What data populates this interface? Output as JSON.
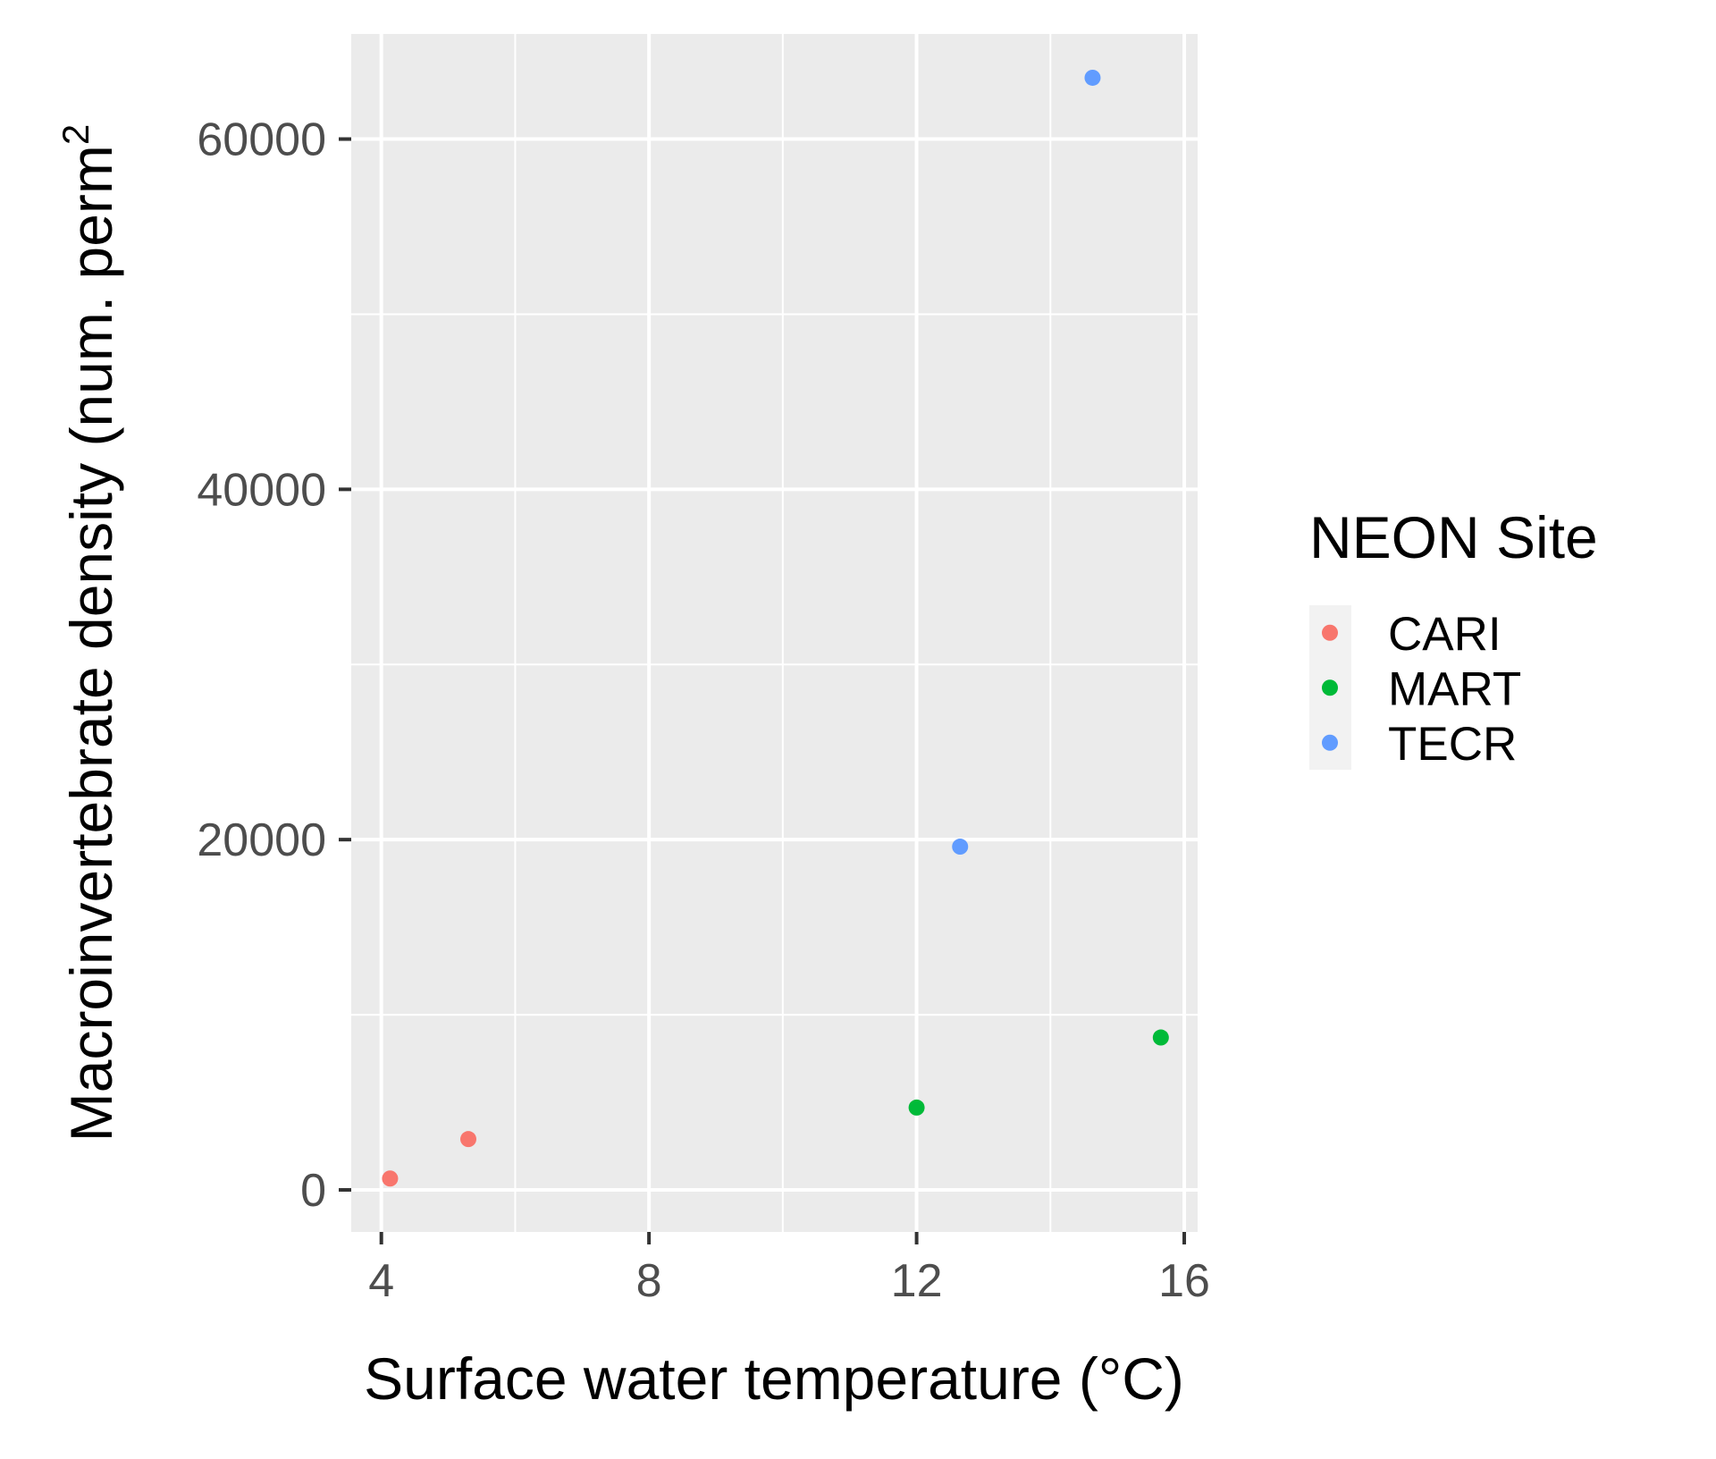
{
  "chart_data": {
    "type": "scatter",
    "xlabel": "Surface water temperature (°C)",
    "ylabel": "Macroinvertebrate density (num. per m²)",
    "ylabel_main": "Macroinvertebrate density (num. perm",
    "ylabel_sup": "2",
    "xlim": [
      3.55,
      16.2
    ],
    "ylim": [
      -2400,
      66000
    ],
    "x_ticks": [
      4,
      8,
      12,
      16
    ],
    "x_tick_labels": [
      "4",
      "8",
      "12",
      "16"
    ],
    "x_minor": [
      6,
      10,
      14
    ],
    "y_ticks": [
      0,
      20000,
      40000,
      60000
    ],
    "y_tick_labels": [
      "0",
      "20000",
      "40000",
      "60000"
    ],
    "y_minor": [
      10000,
      30000,
      50000
    ],
    "grid": true,
    "panel_color": "#ebebeb",
    "legend": {
      "title": "NEON Site",
      "position": "right"
    },
    "series": [
      {
        "name": "CARI",
        "color": "#f8766d",
        "x": [
          4.13,
          5.3
        ],
        "y": [
          650,
          2900
        ]
      },
      {
        "name": "MART",
        "color": "#00ba38",
        "x": [
          12.0,
          15.65
        ],
        "y": [
          4700,
          8700
        ]
      },
      {
        "name": "TECR",
        "color": "#619cff",
        "x": [
          12.65,
          14.63
        ],
        "y": [
          19600,
          63500
        ]
      }
    ]
  }
}
